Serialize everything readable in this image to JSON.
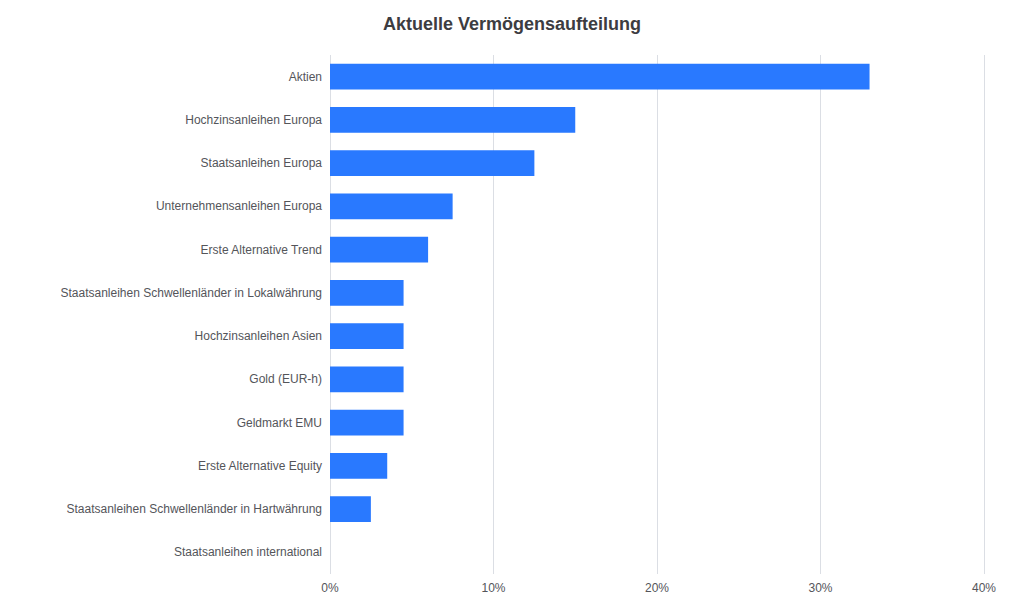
{
  "chart_data": {
    "type": "bar",
    "orientation": "horizontal",
    "title": "Aktuelle Vermögensaufteilung",
    "categories": [
      "Staatsanleihen international",
      "Staatsanleihen Schwellenländer in Hartwährung",
      "Erste Alternative Equity",
      "Geldmarkt EMU",
      "Gold (EUR-h)",
      "Hochzinsanleihen Asien",
      "Staatsanleihen Schwellenländer in Lokalwährung",
      "Erste Alternative Trend",
      "Unternehmensanleihen Europa",
      "Staatsanleihen Europa",
      "Hochzinsanleihen Europa",
      "Aktien"
    ],
    "values": [
      0.0,
      2.5,
      3.5,
      4.5,
      4.5,
      4.5,
      4.5,
      6.0,
      7.5,
      12.5,
      15.0,
      33.0
    ],
    "color": "#2979FF",
    "xlim": [
      0,
      40
    ],
    "xticks": [
      {
        "value": 0,
        "label": "0%"
      },
      {
        "value": 10,
        "label": "10%"
      },
      {
        "value": 20,
        "label": "20%"
      },
      {
        "value": 30,
        "label": "30%"
      },
      {
        "value": 40,
        "label": "40%"
      }
    ],
    "grid": true
  }
}
